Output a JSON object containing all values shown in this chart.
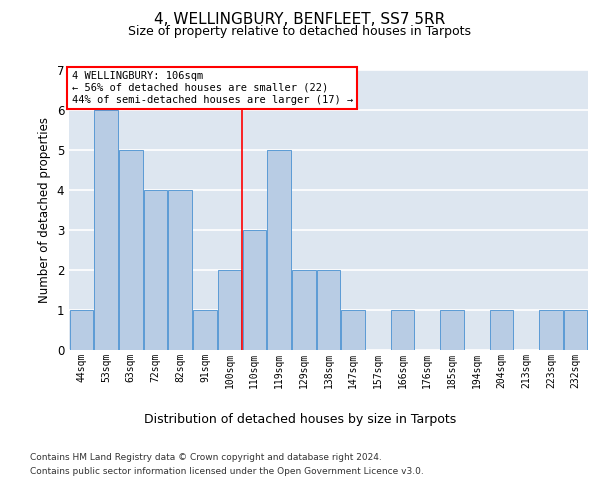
{
  "title_line1": "4, WELLINGBURY, BENFLEET, SS7 5RR",
  "title_line2": "Size of property relative to detached houses in Tarpots",
  "xlabel": "Distribution of detached houses by size in Tarpots",
  "ylabel": "Number of detached properties",
  "categories": [
    "44sqm",
    "53sqm",
    "63sqm",
    "72sqm",
    "82sqm",
    "91sqm",
    "100sqm",
    "110sqm",
    "119sqm",
    "129sqm",
    "138sqm",
    "147sqm",
    "157sqm",
    "166sqm",
    "176sqm",
    "185sqm",
    "194sqm",
    "204sqm",
    "213sqm",
    "223sqm",
    "232sqm"
  ],
  "values": [
    1,
    6,
    5,
    4,
    4,
    1,
    2,
    3,
    5,
    2,
    2,
    1,
    0,
    1,
    0,
    1,
    0,
    1,
    0,
    1,
    1
  ],
  "bar_color": "#b8cce4",
  "bar_edgecolor": "#5b9bd5",
  "background_color": "#dde6f0",
  "grid_color": "#ffffff",
  "annotation_box_text": "4 WELLINGBURY: 106sqm\n← 56% of detached houses are smaller (22)\n44% of semi-detached houses are larger (17) →",
  "redline_index": 6.5,
  "ylim": [
    0,
    7
  ],
  "yticks": [
    0,
    1,
    2,
    3,
    4,
    5,
    6,
    7
  ],
  "footer_line1": "Contains HM Land Registry data © Crown copyright and database right 2024.",
  "footer_line2": "Contains public sector information licensed under the Open Government Licence v3.0."
}
